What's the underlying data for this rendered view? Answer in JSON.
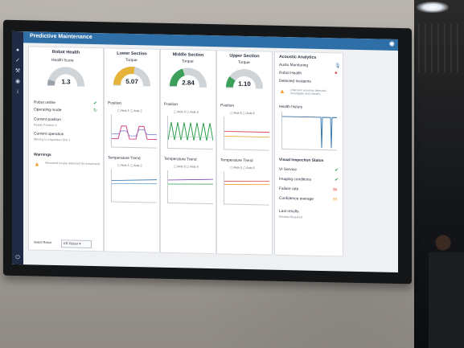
{
  "app": {
    "title": "Predictive Maintenance"
  },
  "colors": {
    "accent": "#2f6fa8",
    "ok": "#2e9e4f",
    "warn": "#f0a33b",
    "alert": "#d93a3a",
    "gauge_yellow": "#e5b23a",
    "gauge_green": "#3da05a"
  },
  "robot_panel": {
    "title": "Robot Health",
    "health_title": "Health Score",
    "health_value": "1.3",
    "status": [
      {
        "label": "Robot online",
        "icon": "check-icon"
      },
      {
        "label": "Operating mode",
        "icon": "refresh-icon"
      }
    ],
    "position_label": "Current position",
    "position_value": "Ready Position 2",
    "operation_label": "Current operation",
    "operation_value": "Moving to inspection Slot 1",
    "warnings_label": "Warnings",
    "warning_text": "Abnormal torque detected for movement",
    "select_label": "Select Robot",
    "select_value": "KR Robot"
  },
  "sections": [
    {
      "title": "Lower Section",
      "gauge_title": "Torque",
      "gauge_value": "5.07",
      "gauge_level": 0.55,
      "gauge_color": "#e5b23a",
      "position_title": "Position",
      "legend": [
        "Axis 1",
        "Axis 2"
      ],
      "temp_title": "Temperature Trend",
      "temp_legend": [
        "Axis 1",
        "Axis 2"
      ]
    },
    {
      "title": "Middle Section",
      "gauge_title": "Torque",
      "gauge_value": "2.84",
      "gauge_level": 0.4,
      "gauge_color": "#3da05a",
      "position_title": "Position",
      "legend": [
        "Axis 3",
        "Axis 4"
      ],
      "temp_title": "Temperature Trend",
      "temp_legend": [
        "Axis 3",
        "Axis 4"
      ]
    },
    {
      "title": "Upper Section",
      "gauge_title": "Torque",
      "gauge_value": "1.10",
      "gauge_level": 0.2,
      "gauge_color": "#3da05a",
      "position_title": "Position",
      "legend": [
        "Axis 5",
        "Axis 6"
      ],
      "temp_title": "Temperature Trend",
      "temp_legend": [
        "Axis 5",
        "Axis 6"
      ]
    }
  ],
  "acoustic": {
    "title": "Acoustic Analytics",
    "monitoring_label": "Audio Monitoring",
    "robot_health_label": "Robot Health",
    "incidents_label": "Detected Incidents",
    "incident_text": "Unknown anomaly detected. Investigate and classify.",
    "history_title": "Health history"
  },
  "visual": {
    "title": "Visual Inspection Status",
    "rows": [
      {
        "label": "VI Service",
        "value": "",
        "icon": "check-icon"
      },
      {
        "label": "Imaging conditions",
        "value": "",
        "icon": "check-icon"
      },
      {
        "label": "Failure rate",
        "value": "90",
        "icon": ""
      },
      {
        "label": "Confidence average",
        "value": "85",
        "icon": ""
      }
    ],
    "last_results_label": "Last results",
    "last_results_value": "Review Required"
  }
}
